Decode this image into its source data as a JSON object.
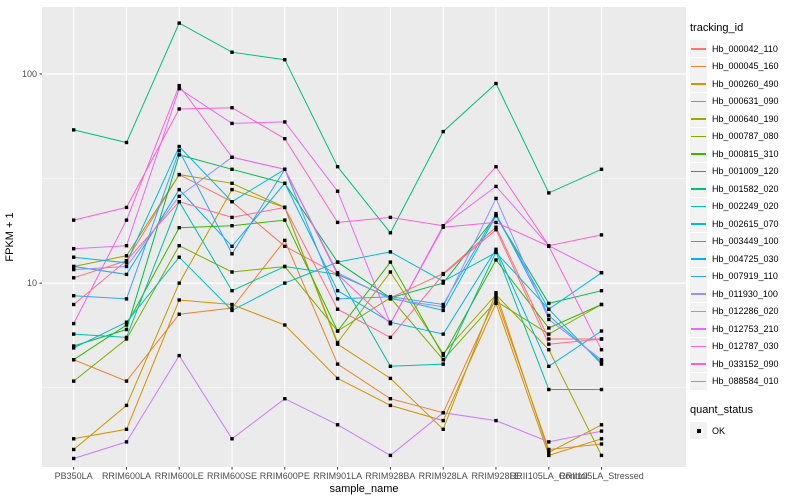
{
  "chart_data": {
    "type": "line",
    "title": "",
    "xlabel": "sample_name",
    "ylabel": "FPKM + 1",
    "y_scale": "log10",
    "ylim": [
      1.32,
      209
    ],
    "y_ticks": [
      10,
      100
    ],
    "y_minor_ticks": [
      3.162,
      31.62
    ],
    "grid": "on",
    "legend_position": "right",
    "point_shape": "filled-square",
    "point_color": "#000000",
    "categories": [
      "PB350LA",
      "RRIM600LA",
      "RRIM600LE",
      "RRIM600SE",
      "RRIM600PE",
      "RRIM901LA",
      "RRIM928BA",
      "RRIM928LA",
      "RRIM928LE",
      "RRII105LA_Control",
      "RRII105LA_Stressed"
    ],
    "series": [
      {
        "name": "Hb_000042_110",
        "color": "#F8766D",
        "values": [
          10.6,
          12.8,
          33,
          24.5,
          15,
          11,
          8.5,
          11.1,
          18.5,
          5.4,
          5.4
        ]
      },
      {
        "name": "Hb_000045_160",
        "color": "#EA8331",
        "values": [
          4.3,
          3.4,
          7.1,
          7.6,
          16,
          4.1,
          2.8,
          2.4,
          8.5,
          1.6,
          1.7
        ]
      },
      {
        "name": "Hb_000260_490",
        "color": "#D89000",
        "values": [
          1.8,
          2.0,
          8.3,
          7.9,
          6.3,
          3.5,
          2.6,
          2.2,
          8.0,
          1.5,
          1.8
        ]
      },
      {
        "name": "Hb_000631_090",
        "color": "#C09B00",
        "values": [
          1.6,
          2.6,
          10,
          28,
          23,
          5.1,
          3.5,
          2.0,
          9.0,
          1.55,
          2.1
        ]
      },
      {
        "name": "Hb_000640_190",
        "color": "#A3A500",
        "values": [
          12,
          13.5,
          33,
          30,
          23,
          5.2,
          11.3,
          4.6,
          8.8,
          4.8,
          1.5
        ]
      },
      {
        "name": "Hb_000787_080",
        "color": "#7CAE00",
        "values": [
          3.4,
          5.4,
          15.1,
          11.3,
          12,
          5.9,
          8.5,
          4.3,
          8.2,
          5.7,
          7.9
        ]
      },
      {
        "name": "Hb_000815_310",
        "color": "#39B600",
        "values": [
          4.3,
          6.3,
          18.4,
          18.8,
          20,
          5.9,
          12.6,
          4.5,
          12.9,
          6.1,
          7.9
        ]
      },
      {
        "name": "Hb_001009_120",
        "color": "#00BB4E",
        "values": [
          5.0,
          6.0,
          41,
          35,
          30,
          12.6,
          8.5,
          10,
          21,
          8.0,
          9.2
        ]
      },
      {
        "name": "Hb_001582_020",
        "color": "#00BF7D",
        "values": [
          54,
          47,
          175,
          127,
          117,
          36,
          17.4,
          53,
          90,
          27,
          35
        ]
      },
      {
        "name": "Hb_002249_020",
        "color": "#00C1A3",
        "values": [
          5.7,
          5.5,
          24.5,
          9.2,
          12,
          11,
          4.0,
          4.1,
          14.1,
          3.1,
          3.1
        ]
      },
      {
        "name": "Hb_002615_070",
        "color": "#00BFC4",
        "values": [
          4.9,
          6.5,
          13.3,
          7.4,
          10,
          12.6,
          14.1,
          10.2,
          14,
          7.5,
          4.1
        ]
      },
      {
        "name": "Hb_003449_100",
        "color": "#00BAE0",
        "values": [
          13.3,
          12.5,
          45,
          24.5,
          35,
          11,
          8.5,
          7.4,
          21,
          7.5,
          11.2
        ]
      },
      {
        "name": "Hb_004725_030",
        "color": "#00B0F6",
        "values": [
          12,
          11,
          28,
          15,
          30,
          9.2,
          6.5,
          5.7,
          14.5,
          4.0,
          5.9
        ]
      },
      {
        "name": "Hb_007919_110",
        "color": "#35A2FF",
        "values": [
          8.7,
          8.4,
          43,
          13.8,
          35,
          8.4,
          8.6,
          7.9,
          21.5,
          7.0,
          4.2
        ]
      },
      {
        "name": "Hb_011930_100",
        "color": "#9590FF",
        "values": [
          11.6,
          12,
          26,
          40,
          35,
          11.2,
          8.4,
          7.7,
          25.4,
          6.7,
          4.3
        ]
      },
      {
        "name": "Hb_012286_020",
        "color": "#C77CFF",
        "values": [
          1.45,
          1.74,
          4.5,
          1.8,
          2.8,
          2.1,
          1.5,
          2.4,
          2.2,
          1.74,
          1.96
        ]
      },
      {
        "name": "Hb_012753_210",
        "color": "#E76BF3",
        "values": [
          14.6,
          15.1,
          85,
          58,
          59,
          27.5,
          6.4,
          18.8,
          29,
          15.1,
          11.2
        ]
      },
      {
        "name": "Hb_012787_030",
        "color": "#FA62DB",
        "values": [
          6.4,
          20,
          88,
          40,
          35,
          11,
          6.4,
          18.5,
          19.5,
          15,
          4.8
        ]
      },
      {
        "name": "Hb_033152_090",
        "color": "#FF61CC",
        "values": [
          20,
          23,
          68,
          69,
          49,
          19.5,
          20.6,
          18.8,
          36,
          15.1,
          17
        ]
      },
      {
        "name": "Hb_088584_010",
        "color": "#FF6A98",
        "values": [
          7.9,
          12.8,
          24.5,
          20.6,
          23,
          7.5,
          5.5,
          11,
          18,
          5.1,
          5.4
        ]
      }
    ]
  },
  "legend": {
    "tracking_title": "tracking_id",
    "quant_title": "quant_status",
    "quant_items": [
      {
        "label": "OK"
      }
    ]
  },
  "colors": {
    "panel_bg": "#EBEBEB",
    "grid_major": "#FFFFFF",
    "grid_minor": "#FFFFFF",
    "axis_text": "#4D4D4D",
    "axis_title": "#000000",
    "tick_mark": "#333333",
    "legend_key_bg": "#F2F2F2",
    "point": "#000000"
  }
}
